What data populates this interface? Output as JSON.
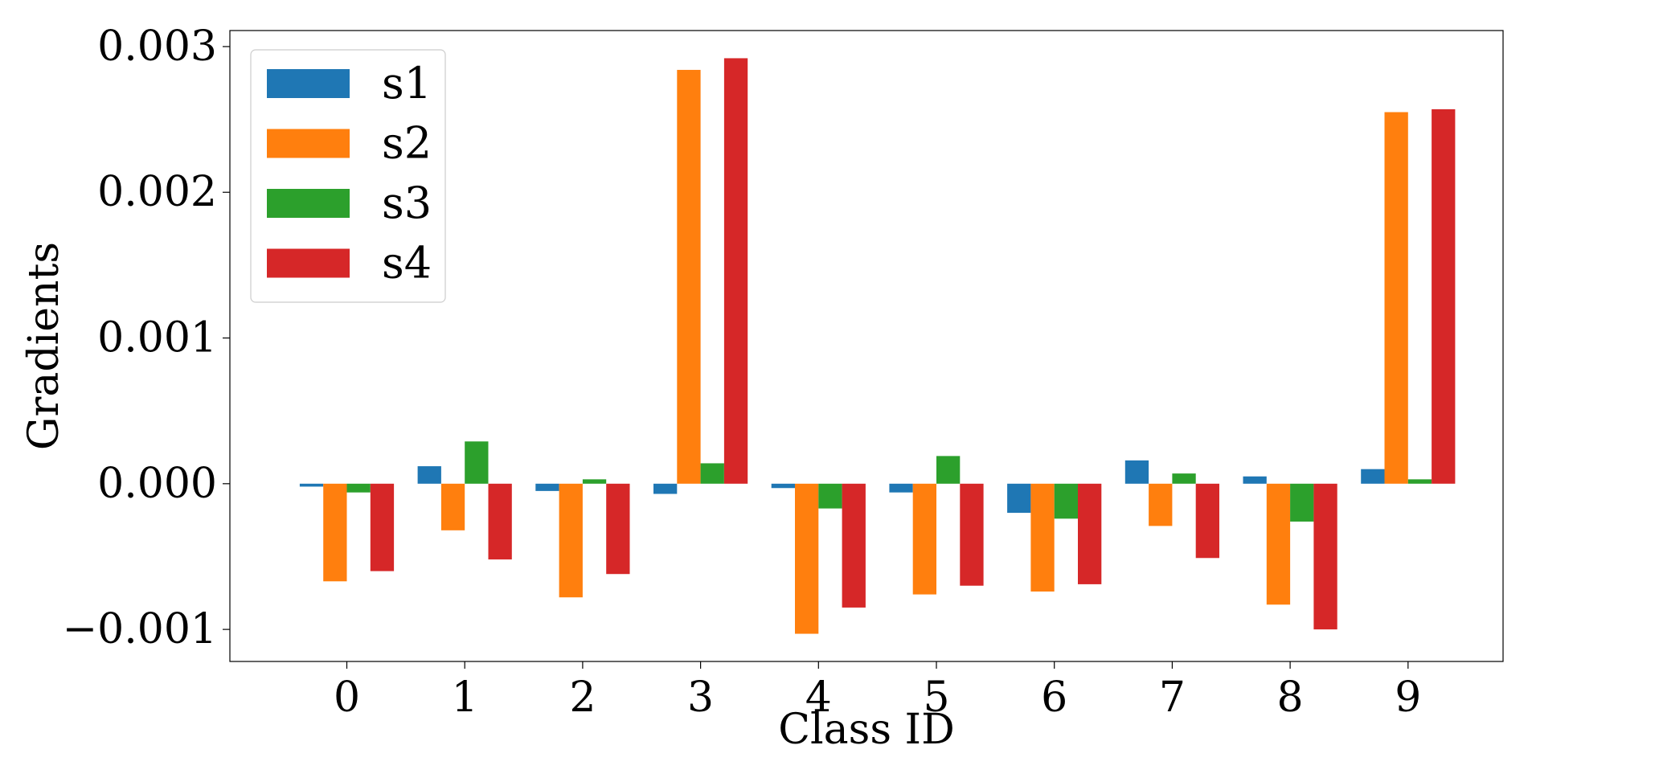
{
  "chart_data": {
    "type": "bar",
    "title": "",
    "xlabel": "Class ID",
    "ylabel": "Gradients",
    "categories": [
      "0",
      "1",
      "2",
      "3",
      "4",
      "5",
      "6",
      "7",
      "8",
      "9"
    ],
    "ylim": [
      -0.00122,
      0.00311
    ],
    "yticks": [
      -0.001,
      0.0,
      0.001,
      0.002,
      0.003
    ],
    "ytick_labels": [
      "−0.001",
      "0.000",
      "0.001",
      "0.002",
      "0.003"
    ],
    "grid": false,
    "legend_position": "top-left",
    "series": [
      {
        "name": "s1",
        "color": "#1f77b4",
        "values": [
          -2e-05,
          0.00012,
          -5e-05,
          -7e-05,
          -3e-05,
          -6e-05,
          -0.0002,
          0.00016,
          5e-05,
          0.0001
        ]
      },
      {
        "name": "s2",
        "color": "#ff7f0e",
        "values": [
          -0.00067,
          -0.00032,
          -0.00078,
          0.00284,
          -0.00103,
          -0.00076,
          -0.00074,
          -0.00029,
          -0.00083,
          0.00255
        ]
      },
      {
        "name": "s3",
        "color": "#2ca02c",
        "values": [
          -6e-05,
          0.00029,
          3e-05,
          0.00014,
          -0.00017,
          0.00019,
          -0.00024,
          7e-05,
          -0.00026,
          3e-05
        ]
      },
      {
        "name": "s4",
        "color": "#d62728",
        "values": [
          -0.0006,
          -0.00052,
          -0.00062,
          0.00292,
          -0.00085,
          -0.0007,
          -0.00069,
          -0.00051,
          -0.001,
          0.00257
        ]
      }
    ]
  }
}
